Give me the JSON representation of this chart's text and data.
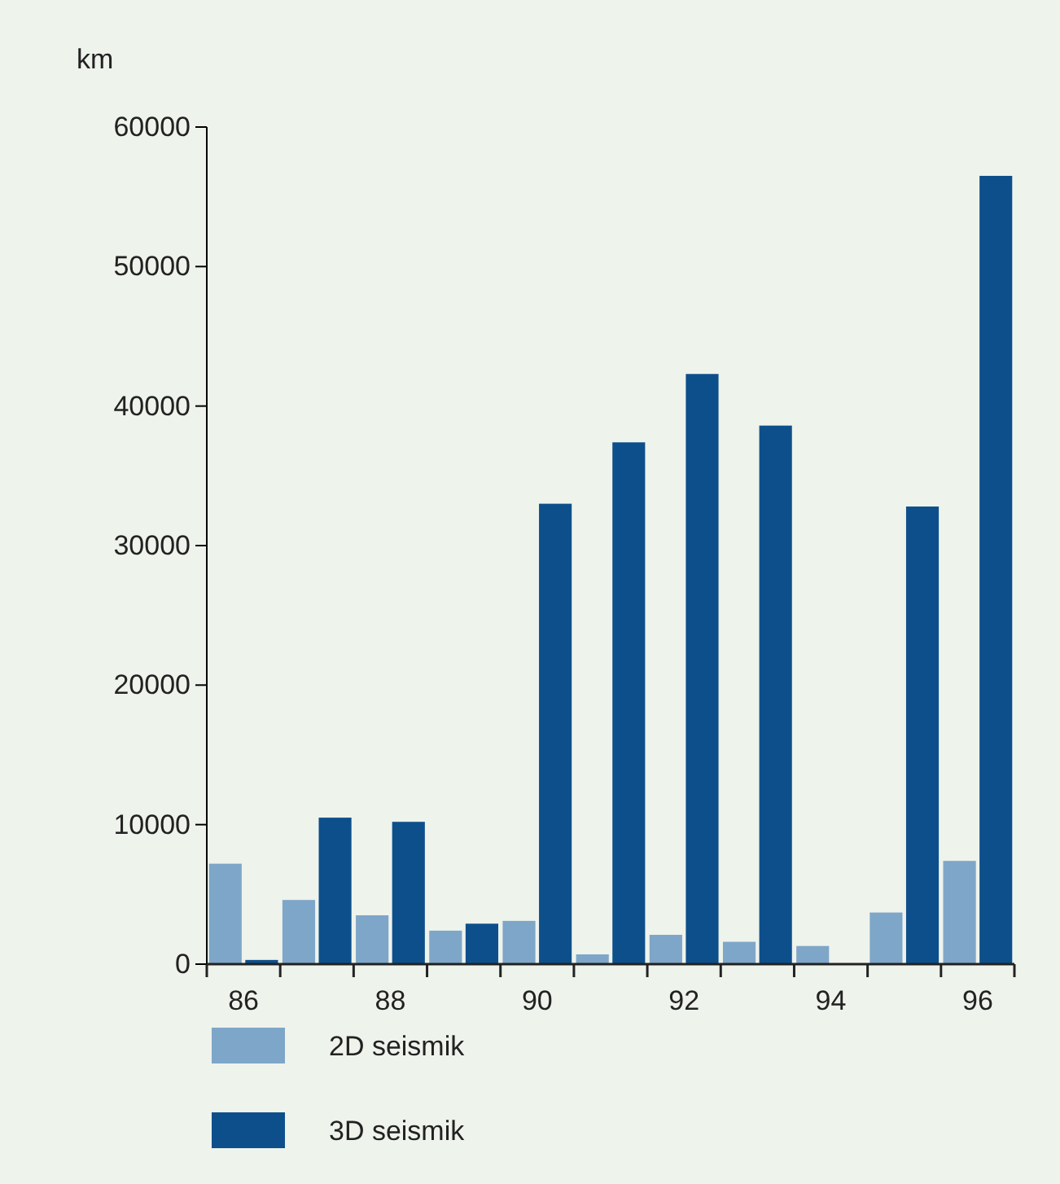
{
  "chart_data": {
    "type": "bar",
    "ylabel": "km",
    "categories": [
      "86",
      null,
      "88",
      null,
      "90",
      null,
      "92",
      null,
      "94",
      null,
      "96"
    ],
    "series": [
      {
        "name": "2D seismik",
        "color": "#7ea6c8",
        "values": [
          7200,
          4600,
          3500,
          2400,
          3100,
          700,
          2100,
          1600,
          1300,
          3700,
          7400
        ]
      },
      {
        "name": "3D seismik",
        "color": "#0d4f8b",
        "values": [
          300,
          10500,
          10200,
          2900,
          33000,
          37400,
          42300,
          38600,
          0,
          32800,
          56500
        ]
      }
    ],
    "ylim": [
      0,
      60000
    ],
    "yticks": [
      0,
      10000,
      20000,
      30000,
      40000,
      50000,
      60000
    ],
    "grid": false,
    "legend": "bottom"
  }
}
